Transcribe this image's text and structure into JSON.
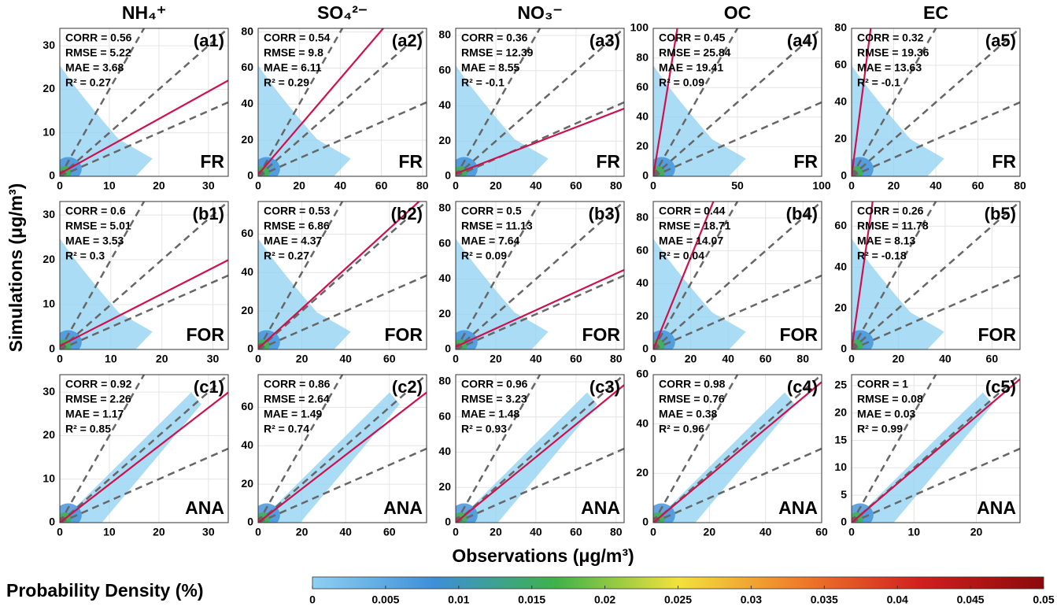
{
  "column_titles": [
    "NH₄⁺",
    "SO₄²⁻",
    "NO₃⁻",
    "OC",
    "EC"
  ],
  "y_label": "Simulations (μg/m³)",
  "x_label": "Observations (μg/m³)",
  "colorbar": {
    "title": "Probability Density (%)",
    "lim": [
      0,
      0.05
    ],
    "ticks": [
      0,
      0.005,
      0.01,
      0.015,
      0.02,
      0.025,
      0.03,
      0.035,
      0.04,
      0.045,
      0.05
    ],
    "colors": [
      "#8fd0f2",
      "#3d8fd8",
      "#3fb24a",
      "#f2e23c",
      "#f07c2a",
      "#d01f1f",
      "#8c0a0a"
    ]
  },
  "chart_data": [
    {
      "type": "scatter",
      "label": "(a1)",
      "row": "FR",
      "stats": [
        "CORR = 0.56",
        "RMSE = 5.22",
        "MAE = 3.68",
        "R² = 0.27"
      ],
      "xlim": [
        0,
        34
      ],
      "ylim": [
        0,
        34
      ],
      "xticks": [
        0,
        10,
        20,
        30
      ],
      "yticks": [
        0,
        10,
        20,
        30
      ],
      "fit": {
        "slope": 0.63,
        "intercept": 0.6
      },
      "reference_slopes": [
        0.5,
        1,
        2
      ],
      "fit_color": "#d0104c"
    },
    {
      "type": "scatter",
      "label": "(a2)",
      "row": "FR",
      "stats": [
        "CORR = 0.54",
        "RMSE = 9.8",
        "MAE = 6.11",
        "R² = 0.29"
      ],
      "xlim": [
        0,
        82
      ],
      "ylim": [
        0,
        82
      ],
      "xticks": [
        0,
        20,
        40,
        60,
        80
      ],
      "yticks": [
        0,
        20,
        40,
        60,
        80
      ],
      "fit": {
        "slope": 1.33,
        "intercept": 1
      },
      "reference_slopes": [
        0.5,
        1,
        2
      ],
      "fit_color": "#d0104c"
    },
    {
      "type": "scatter",
      "label": "(a3)",
      "row": "FR",
      "stats": [
        "CORR = 0.36",
        "RMSE = 12.39",
        "MAE = 8.55",
        "R² = -0.1"
      ],
      "xlim": [
        0,
        84
      ],
      "ylim": [
        0,
        84
      ],
      "xticks": [
        0,
        20,
        40,
        60,
        80
      ],
      "yticks": [
        0,
        20,
        40,
        60,
        80
      ],
      "fit": {
        "slope": 0.44,
        "intercept": 1.5
      },
      "reference_slopes": [
        0.5,
        1,
        2
      ],
      "fit_color": "#d0104c"
    },
    {
      "type": "scatter",
      "label": "(a4)",
      "row": "FR",
      "stats": [
        "CORR = 0.45",
        "RMSE = 25.84",
        "MAE = 19.41",
        "R² = 0.09"
      ],
      "xlim": [
        0,
        100
      ],
      "ylim": [
        0,
        100
      ],
      "xticks": [
        0,
        50,
        100
      ],
      "yticks": [
        0,
        20,
        40,
        60,
        80,
        100
      ],
      "fit": {
        "slope": 7,
        "intercept": 0
      },
      "reference_slopes": [
        0.5,
        1,
        2
      ],
      "fit_color": "#d0104c"
    },
    {
      "type": "scatter",
      "label": "(a5)",
      "row": "FR",
      "stats": [
        "CORR = 0.32",
        "RMSE = 19.36",
        "MAE = 13.63",
        "R² = -0.1"
      ],
      "xlim": [
        0,
        80
      ],
      "ylim": [
        0,
        80
      ],
      "xticks": [
        0,
        20,
        40,
        60,
        80
      ],
      "yticks": [
        0,
        20,
        40,
        60,
        80
      ],
      "fit": {
        "slope": 8.8,
        "intercept": 0
      },
      "reference_slopes": [
        0.5,
        1,
        2
      ],
      "fit_color": "#d0104c"
    },
    {
      "type": "scatter",
      "label": "(b1)",
      "row": "FOR",
      "stats": [
        "CORR = 0.6",
        "RMSE = 5.01",
        "MAE = 3.53",
        "R² = 0.3"
      ],
      "xlim": [
        0,
        33
      ],
      "ylim": [
        0,
        33
      ],
      "xticks": [
        0,
        10,
        20,
        30
      ],
      "yticks": [
        0,
        10,
        20,
        30
      ],
      "fit": {
        "slope": 0.58,
        "intercept": 0.8
      },
      "reference_slopes": [
        0.5,
        1,
        2
      ],
      "fit_color": "#d0104c"
    },
    {
      "type": "scatter",
      "label": "(b2)",
      "row": "FOR",
      "stats": [
        "CORR = 0.53",
        "RMSE = 6.86",
        "MAE = 4.37",
        "R² = 0.27"
      ],
      "xlim": [
        0,
        77
      ],
      "ylim": [
        0,
        77
      ],
      "xticks": [
        0,
        20,
        40,
        60
      ],
      "yticks": [
        0,
        20,
        40,
        60
      ],
      "fit": {
        "slope": 1.04,
        "intercept": 0.5
      },
      "reference_slopes": [
        0.5,
        1,
        2
      ],
      "fit_color": "#d0104c"
    },
    {
      "type": "scatter",
      "label": "(b3)",
      "row": "FOR",
      "stats": [
        "CORR = 0.5",
        "RMSE = 11.13",
        "MAE = 7.64",
        "R² = 0.09"
      ],
      "xlim": [
        0,
        84
      ],
      "ylim": [
        0,
        84
      ],
      "xticks": [
        0,
        20,
        40,
        60,
        80
      ],
      "yticks": [
        0,
        20,
        40,
        60,
        80
      ],
      "fit": {
        "slope": 0.52,
        "intercept": 1.5
      },
      "reference_slopes": [
        0.5,
        1,
        2
      ],
      "fit_color": "#d0104c"
    },
    {
      "type": "scatter",
      "label": "(b4)",
      "row": "FOR",
      "stats": [
        "CORR = 0.44",
        "RMSE = 18.71",
        "MAE = 14.07",
        "R² = 0.04"
      ],
      "xlim": [
        0,
        90
      ],
      "ylim": [
        0,
        90
      ],
      "xticks": [
        0,
        20,
        40,
        60,
        80
      ],
      "yticks": [
        0,
        20,
        40,
        60,
        80
      ],
      "fit": {
        "slope": 2.8,
        "intercept": 0
      },
      "reference_slopes": [
        0.5,
        1,
        2
      ],
      "fit_color": "#d0104c"
    },
    {
      "type": "scatter",
      "label": "(b5)",
      "row": "FOR",
      "stats": [
        "CORR = 0.26",
        "RMSE = 11.78",
        "MAE = 8.13",
        "R² = -0.18"
      ],
      "xlim": [
        0,
        72
      ],
      "ylim": [
        0,
        72
      ],
      "xticks": [
        0,
        20,
        40,
        60
      ],
      "yticks": [
        0,
        20,
        40,
        60
      ],
      "fit": {
        "slope": 8,
        "intercept": 0
      },
      "reference_slopes": [
        0.5,
        1,
        2
      ],
      "fit_color": "#d0104c"
    },
    {
      "type": "scatter",
      "label": "(c1)",
      "row": "ANA",
      "stats": [
        "CORR = 0.92",
        "RMSE = 2.26",
        "MAE = 1.17",
        "R² = 0.85"
      ],
      "xlim": [
        0,
        34
      ],
      "ylim": [
        0,
        34
      ],
      "xticks": [
        0,
        10,
        20,
        30
      ],
      "yticks": [
        0,
        10,
        20,
        30
      ],
      "fit": {
        "slope": 0.88,
        "intercept": 0
      },
      "reference_slopes": [
        0.5,
        1,
        2
      ],
      "fit_color": "#d0104c"
    },
    {
      "type": "scatter",
      "label": "(c2)",
      "row": "ANA",
      "stats": [
        "CORR = 0.86",
        "RMSE = 2.64",
        "MAE = 1.49",
        "R² = 0.74"
      ],
      "xlim": [
        0,
        77
      ],
      "ylim": [
        0,
        77
      ],
      "xticks": [
        0,
        20,
        40,
        60
      ],
      "yticks": [
        0,
        20,
        40,
        60
      ],
      "fit": {
        "slope": 0.88,
        "intercept": 0
      },
      "reference_slopes": [
        0.5,
        1,
        2
      ],
      "fit_color": "#d0104c"
    },
    {
      "type": "scatter",
      "label": "(c3)",
      "row": "ANA",
      "stats": [
        "CORR = 0.96",
        "RMSE = 3.23",
        "MAE = 1.48",
        "R² = 0.93"
      ],
      "xlim": [
        0,
        84
      ],
      "ylim": [
        0,
        84
      ],
      "xticks": [
        0,
        20,
        40,
        60,
        80
      ],
      "yticks": [
        0,
        20,
        40,
        60,
        80
      ],
      "fit": {
        "slope": 0.93,
        "intercept": 0
      },
      "reference_slopes": [
        0.5,
        1,
        2
      ],
      "fit_color": "#d0104c"
    },
    {
      "type": "scatter",
      "label": "(c4)",
      "row": "ANA",
      "stats": [
        "CORR = 0.98",
        "RMSE = 0.76",
        "MAE = 0.38",
        "R² = 0.96"
      ],
      "xlim": [
        0,
        60
      ],
      "ylim": [
        0,
        60
      ],
      "xticks": [
        0,
        20,
        40,
        60
      ],
      "yticks": [
        0,
        20,
        40,
        60
      ],
      "fit": {
        "slope": 0.95,
        "intercept": 0
      },
      "reference_slopes": [
        0.5,
        1,
        2
      ],
      "fit_color": "#d0104c"
    },
    {
      "type": "scatter",
      "label": "(c5)",
      "row": "ANA",
      "stats": [
        "CORR = 1",
        "RMSE = 0.08",
        "MAE = 0.03",
        "R² = 0.99"
      ],
      "xlim": [
        0,
        27
      ],
      "ylim": [
        0,
        27
      ],
      "xticks": [
        0,
        10,
        20
      ],
      "yticks": [
        0,
        5,
        10,
        15,
        20,
        25
      ],
      "fit": {
        "slope": 0.97,
        "intercept": 0
      },
      "reference_slopes": [
        0.5,
        1,
        2
      ],
      "fit_color": "#d0104c"
    }
  ]
}
